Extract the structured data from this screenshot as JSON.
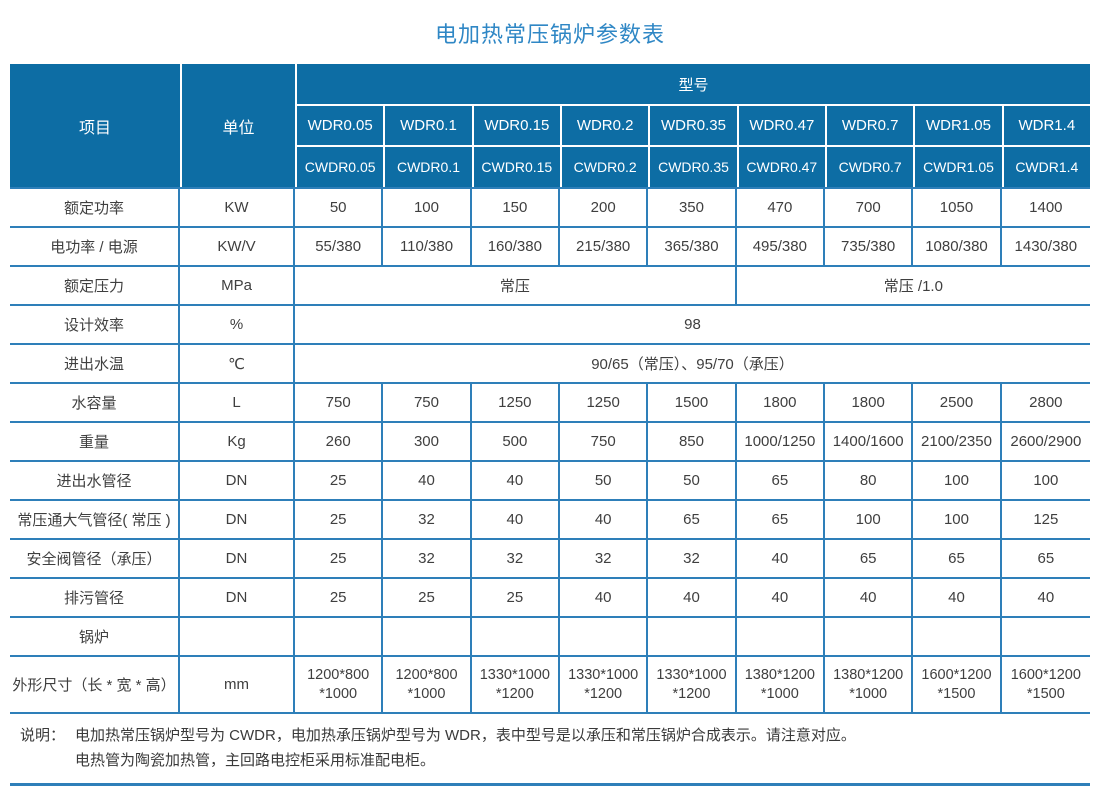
{
  "title": "电加热常压锅炉参数表",
  "colors": {
    "header_background": "#0d6da4",
    "grid_line": "#2e7fb9",
    "title_text": "#2f87c5",
    "body_text": "#3f3f3f"
  },
  "table": {
    "header": {
      "item_label": "项目",
      "unit_label": "单位",
      "model_label": "型号",
      "models_wdr": [
        "WDR0.05",
        "WDR0.1",
        "WDR0.15",
        "WDR0.2",
        "WDR0.35",
        "WDR0.47",
        "WDR0.7",
        "WDR1.05",
        "WDR1.4"
      ],
      "models_cwdr": [
        "CWDR0.05",
        "CWDR0.1",
        "CWDR0.15",
        "CWDR0.2",
        "CWDR0.35",
        "CWDR0.47",
        "CWDR0.7",
        "CWDR1.05",
        "CWDR1.4"
      ]
    },
    "rows": [
      {
        "label": "额定功率",
        "unit": "KW",
        "values": [
          "50",
          "100",
          "150",
          "200",
          "350",
          "470",
          "700",
          "1050",
          "1400"
        ]
      },
      {
        "label": "电功率 / 电源",
        "unit": "KW/V",
        "values": [
          "55/380",
          "110/380",
          "160/380",
          "215/380",
          "365/380",
          "495/380",
          "735/380",
          "1080/380",
          "1430/380"
        ]
      },
      {
        "label": "额定压力",
        "unit": "MPa",
        "spans": [
          {
            "text": "常压",
            "cols": 5
          },
          {
            "text": "常压 /1.0",
            "cols": 4
          }
        ]
      },
      {
        "label": "设计效率",
        "unit": "%",
        "spans": [
          {
            "text": "98",
            "cols": 9
          }
        ]
      },
      {
        "label": "进出水温",
        "unit": "℃",
        "spans": [
          {
            "text": "90/65（常压）、95/70（承压）",
            "cols": 9
          }
        ]
      },
      {
        "label": "水容量",
        "unit": "L",
        "values": [
          "750",
          "750",
          "1250",
          "1250",
          "1500",
          "1800",
          "1800",
          "2500",
          "2800"
        ]
      },
      {
        "label": "重量",
        "unit": "Kg",
        "values": [
          "260",
          "300",
          "500",
          "750",
          "850",
          "1000/1250",
          "1400/1600",
          "2100/2350",
          "2600/2900"
        ]
      },
      {
        "label": "进出水管径",
        "unit": "DN",
        "values": [
          "25",
          "40",
          "40",
          "50",
          "50",
          "65",
          "80",
          "100",
          "100"
        ]
      },
      {
        "label": "常压通大气管径( 常压 )",
        "unit": "DN",
        "values": [
          "25",
          "32",
          "40",
          "40",
          "65",
          "65",
          "100",
          "100",
          "125"
        ]
      },
      {
        "label": "安全阀管径（承压）",
        "unit": "DN",
        "values": [
          "25",
          "32",
          "32",
          "32",
          "32",
          "40",
          "65",
          "65",
          "65"
        ]
      },
      {
        "label": "排污管径",
        "unit": "DN",
        "values": [
          "25",
          "25",
          "25",
          "40",
          "40",
          "40",
          "40",
          "40",
          "40"
        ]
      },
      {
        "label": "锅炉",
        "unit": "",
        "values": [
          "",
          "",
          "",
          "",
          "",
          "",
          "",
          "",
          ""
        ]
      },
      {
        "label": "外形尺寸（长 * 宽 * 高）",
        "unit": "mm",
        "values": [
          "1200*800\n*1000",
          "1200*800\n*1000",
          "1330*1000\n*1200",
          "1330*1000\n*1200",
          "1330*1000\n*1200",
          "1380*1200\n*1000",
          "1380*1200\n*1000",
          "1600*1200\n*1500",
          "1600*1200\n*1500"
        ]
      }
    ]
  },
  "note": {
    "label": "说明：",
    "lines": [
      "电加热常压锅炉型号为 CWDR，电加热承压锅炉型号为 WDR，表中型号是以承压和常压锅炉合成表示。请注意对应。",
      "电热管为陶瓷加热管，主回路电控柜采用标准配电柜。"
    ]
  }
}
